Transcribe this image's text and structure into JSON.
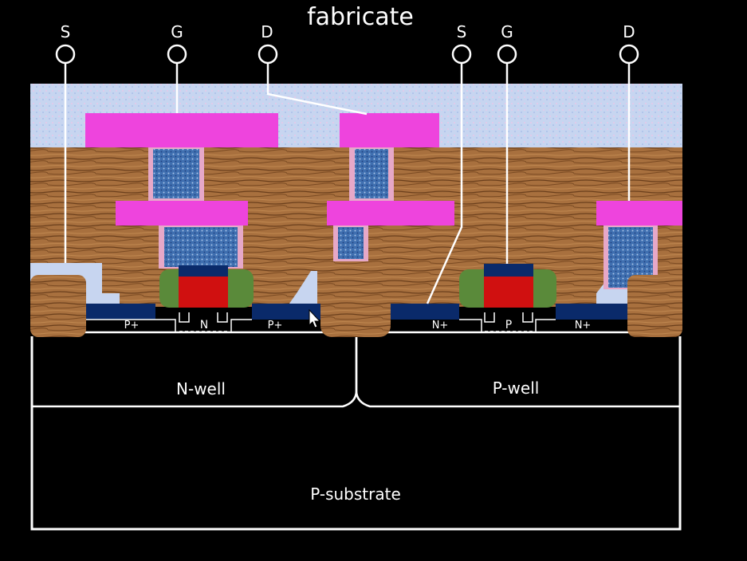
{
  "title": "fabricate",
  "terminals": {
    "left": {
      "s": "S",
      "g": "G",
      "d": "D"
    },
    "right": {
      "s": "S",
      "g": "G",
      "d": "D"
    }
  },
  "regions": {
    "left": {
      "src": "P+",
      "channel": "N",
      "drn": "P+"
    },
    "right": {
      "src": "N+",
      "channel": "P",
      "drn": "N+"
    }
  },
  "wells": {
    "n_well": "N-well",
    "p_well": "P-well"
  },
  "substrate": "P-substrate",
  "colors": {
    "background": "#000000",
    "metal": "#ee44dd",
    "oxide": "#c9d6ee",
    "dielectric_wood": "#a8703e",
    "via": "#3f6fb0",
    "gate_poly": "#d01010",
    "gate_cap": "#0a2a6a",
    "spacer": "#5a8a3a",
    "diffusion": "#0a2a6a",
    "outline": "#ffffff"
  }
}
